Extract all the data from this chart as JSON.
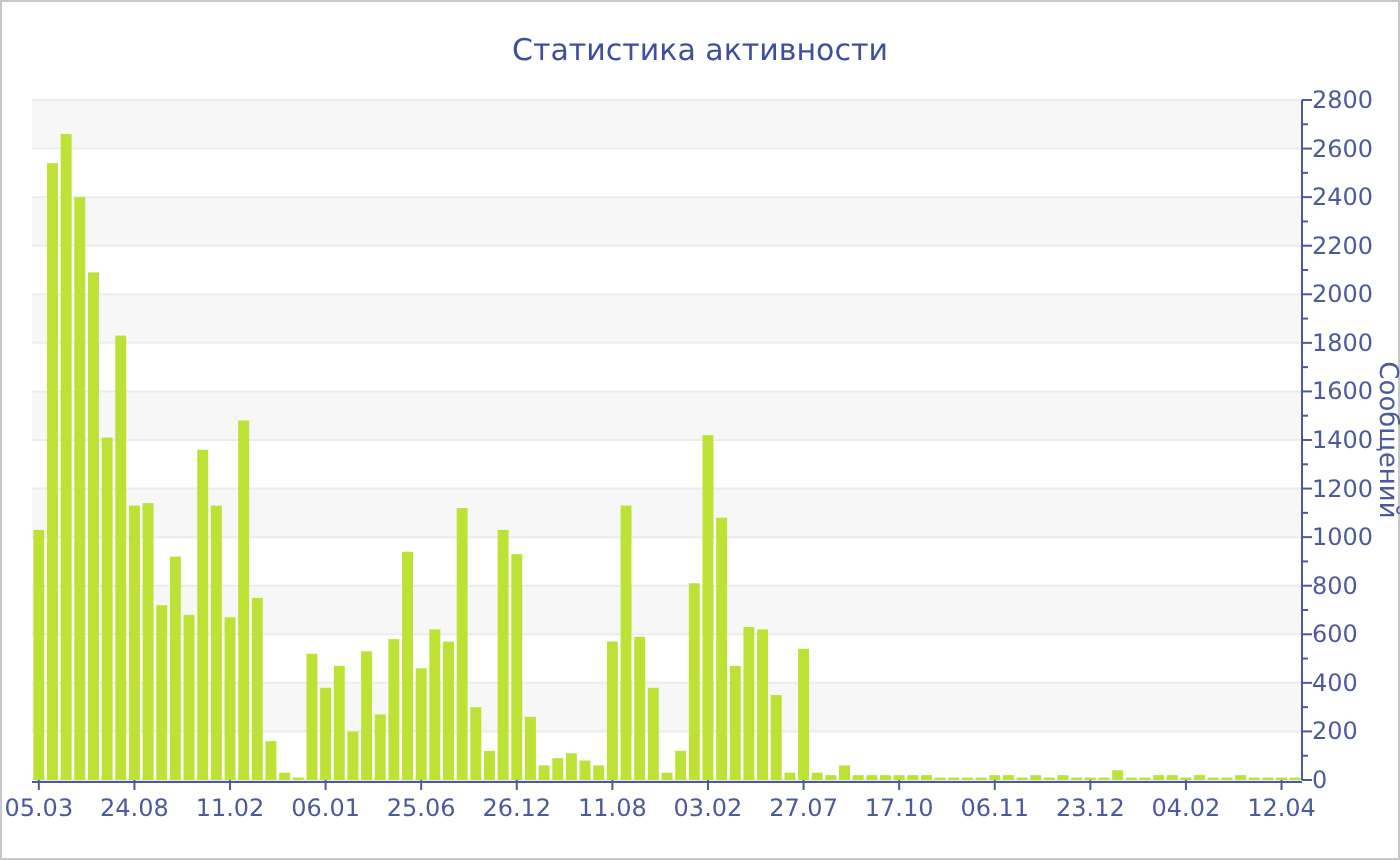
{
  "chart_data": {
    "type": "bar",
    "title": "Статистика активности",
    "ylabel": "Сообщений",
    "categories": [
      "05.03",
      null,
      null,
      null,
      null,
      null,
      null,
      "24.08",
      null,
      null,
      null,
      null,
      null,
      null,
      "11.02",
      null,
      null,
      null,
      null,
      null,
      null,
      "06.01",
      null,
      null,
      null,
      null,
      null,
      null,
      "25.06",
      null,
      null,
      null,
      null,
      null,
      null,
      "26.12",
      null,
      null,
      null,
      null,
      null,
      null,
      "11.08",
      null,
      null,
      null,
      null,
      null,
      null,
      "03.02",
      null,
      null,
      null,
      null,
      null,
      null,
      "27.07",
      null,
      null,
      null,
      null,
      null,
      null,
      "17.10",
      null,
      null,
      null,
      null,
      null,
      null,
      "06.11",
      null,
      null,
      null,
      null,
      null,
      null,
      "23.12",
      null,
      null,
      null,
      null,
      null,
      null,
      "04.02",
      null,
      null,
      null,
      null,
      null,
      null,
      "12.04",
      null
    ],
    "values": [
      1030,
      2540,
      2660,
      2400,
      2090,
      1410,
      1830,
      1130,
      1140,
      720,
      920,
      680,
      1360,
      1130,
      670,
      1480,
      750,
      160,
      30,
      10,
      520,
      380,
      470,
      200,
      530,
      270,
      580,
      940,
      460,
      620,
      570,
      1120,
      300,
      120,
      1030,
      930,
      260,
      60,
      90,
      110,
      80,
      60,
      570,
      1130,
      590,
      380,
      30,
      120,
      810,
      1420,
      1080,
      470,
      630,
      620,
      350,
      30,
      540,
      30,
      20,
      60,
      20,
      20,
      20,
      20,
      20,
      20,
      10,
      10,
      10,
      10,
      20,
      20,
      10,
      20,
      10,
      20,
      10,
      10,
      10,
      40,
      10,
      10,
      20,
      20,
      10,
      20,
      10,
      10,
      20,
      10,
      10,
      10,
      10
    ],
    "color": "#bce236",
    "ylim": [
      0,
      2800
    ],
    "yticks": [
      0,
      {
        "value": 100,
        "label": null
      },
      200,
      {
        "value": 300,
        "label": null
      },
      400,
      {
        "value": 500,
        "label": null
      },
      600,
      {
        "value": 700,
        "label": null
      },
      800,
      {
        "value": 900,
        "label": null
      },
      1000,
      {
        "value": 1100,
        "label": null
      },
      1200,
      {
        "value": 1300,
        "label": null
      },
      1400,
      {
        "value": 1500,
        "label": null
      },
      1600,
      {
        "value": 1700,
        "label": null
      },
      1800,
      {
        "value": 1900,
        "label": null
      },
      2000,
      {
        "value": 2100,
        "label": null
      },
      2200,
      {
        "value": 2300,
        "label": null
      },
      2400,
      {
        "value": 2500,
        "label": null
      },
      2600,
      {
        "value": 2700,
        "label": null
      },
      2800
    ],
    "grid": true
  }
}
